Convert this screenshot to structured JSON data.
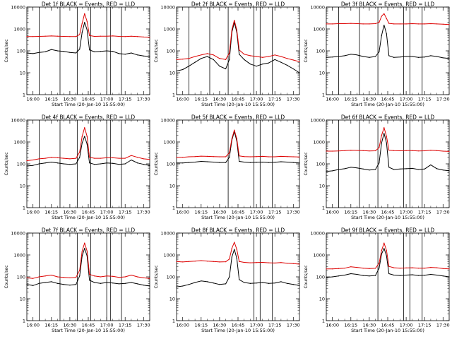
{
  "figure": {
    "background": "#ffffff",
    "series_colors": {
      "Events": "#000000",
      "LLD": "#dd0000"
    }
  },
  "chart_data": [
    {
      "type": "line",
      "title": "Det 1f BLACK = Events, RED = LLD",
      "xlabel": "Start Time (20-Jan-10 15:55:00)",
      "ylabel": "Counts/sec",
      "yscale": "log",
      "ylim": [
        1,
        10000
      ],
      "xlim": [
        "15:55",
        "17:35"
      ],
      "x_ticks": [
        "16:00",
        "16:15",
        "16:30",
        "16:45",
        "17:00",
        "17:15",
        "17:30"
      ],
      "y_ticks": [
        "1",
        "10",
        "100",
        "1000",
        "10000"
      ],
      "vertical_lines": [
        "16:05",
        "16:22",
        "16:36",
        "16:47",
        "17:00",
        "17:03",
        "17:12"
      ],
      "x_minutes": [
        0,
        5,
        10,
        15,
        20,
        25,
        30,
        35,
        40,
        43,
        45,
        47,
        49,
        51,
        55,
        60,
        65,
        70,
        75,
        80,
        85,
        90,
        95,
        100
      ],
      "series": [
        {
          "name": "Events",
          "color": "#000000",
          "values": [
            80,
            75,
            85,
            90,
            115,
            100,
            95,
            85,
            80,
            120,
            700,
            2000,
            900,
            110,
            90,
            95,
            100,
            95,
            75,
            70,
            80,
            65,
            58,
            55
          ]
        },
        {
          "name": "LLD",
          "color": "#dd0000",
          "values": [
            450,
            450,
            460,
            470,
            480,
            470,
            460,
            450,
            450,
            560,
            1800,
            5000,
            2200,
            500,
            460,
            470,
            470,
            480,
            460,
            450,
            470,
            450,
            430,
            420
          ]
        }
      ]
    },
    {
      "type": "line",
      "title": "Det 2f BLACK = Events, RED = LLD",
      "xlabel": "Start Time (20-Jan-10 15:55:00)",
      "ylabel": "Counts/sec",
      "yscale": "log",
      "ylim": [
        1,
        10000
      ],
      "xlim": [
        "15:55",
        "17:35"
      ],
      "x_ticks": [
        "16:00",
        "16:15",
        "16:30",
        "16:45",
        "17:00",
        "17:15",
        "17:30"
      ],
      "y_ticks": [
        "1",
        "10",
        "100",
        "1000",
        "10000"
      ],
      "vertical_lines": [
        "16:05",
        "16:22",
        "16:37",
        "16:58",
        "17:03",
        "17:13"
      ],
      "x_minutes": [
        0,
        5,
        10,
        15,
        20,
        25,
        30,
        35,
        40,
        43,
        45,
        47,
        49,
        51,
        55,
        60,
        65,
        70,
        75,
        80,
        85,
        90,
        95,
        100
      ],
      "series": [
        {
          "name": "Events",
          "color": "#000000",
          "values": [
            12,
            14,
            20,
            30,
            45,
            55,
            40,
            20,
            15,
            40,
            700,
            2000,
            700,
            70,
            40,
            25,
            20,
            25,
            28,
            40,
            30,
            22,
            15,
            10
          ]
        },
        {
          "name": "LLD",
          "color": "#dd0000",
          "values": [
            40,
            42,
            45,
            55,
            65,
            75,
            65,
            45,
            40,
            80,
            900,
            2500,
            900,
            110,
            70,
            60,
            55,
            50,
            55,
            65,
            55,
            45,
            38,
            32
          ]
        }
      ]
    },
    {
      "type": "line",
      "title": "Det 3f BLACK = Events, RED = LLD",
      "xlabel": "Start Time (20-Jan-10 15:55:00)",
      "ylabel": "Counts/sec",
      "yscale": "log",
      "ylim": [
        1,
        10000
      ],
      "xlim": [
        "15:55",
        "17:35"
      ],
      "x_ticks": [
        "16:00",
        "16:15",
        "16:30",
        "16:45",
        "17:00",
        "17:15",
        "17:30"
      ],
      "y_ticks": [
        "1",
        "10",
        "100",
        "1000",
        "10000"
      ],
      "vertical_lines": [
        "16:05",
        "16:22",
        "16:37",
        "16:58",
        "17:03",
        "17:13"
      ],
      "x_minutes": [
        0,
        5,
        10,
        15,
        20,
        25,
        30,
        35,
        40,
        43,
        45,
        47,
        49,
        51,
        55,
        60,
        65,
        70,
        75,
        80,
        85,
        90,
        95,
        100
      ],
      "series": [
        {
          "name": "Events",
          "color": "#000000",
          "values": [
            50,
            52,
            55,
            60,
            70,
            65,
            55,
            50,
            55,
            90,
            500,
            1500,
            600,
            60,
            50,
            52,
            55,
            55,
            50,
            52,
            60,
            55,
            48,
            45
          ]
        },
        {
          "name": "LLD",
          "color": "#dd0000",
          "values": [
            1700,
            1700,
            1750,
            1750,
            1800,
            1750,
            1700,
            1700,
            1750,
            2000,
            3800,
            5000,
            3000,
            1800,
            1700,
            1700,
            1700,
            1750,
            1700,
            1700,
            1750,
            1700,
            1650,
            1600
          ]
        }
      ]
    },
    {
      "type": "line",
      "title": "Det 4f BLACK = Events, RED = LLD",
      "xlabel": "Start Time (20-Jan-10 15:55:00)",
      "ylabel": "Counts/sec",
      "yscale": "log",
      "ylim": [
        1,
        10000
      ],
      "xlim": [
        "15:55",
        "17:35"
      ],
      "x_ticks": [
        "16:00",
        "16:15",
        "16:30",
        "16:45",
        "17:00",
        "17:15",
        "17:30"
      ],
      "y_ticks": [
        "1",
        "10",
        "100",
        "1000",
        "10000"
      ],
      "vertical_lines": [
        "16:05",
        "16:22",
        "16:36",
        "16:47",
        "17:00",
        "17:03",
        "17:12"
      ],
      "x_minutes": [
        0,
        5,
        10,
        15,
        20,
        25,
        30,
        35,
        40,
        43,
        45,
        47,
        49,
        51,
        55,
        60,
        65,
        70,
        75,
        80,
        85,
        90,
        95,
        100
      ],
      "series": [
        {
          "name": "Events",
          "color": "#000000",
          "values": [
            80,
            85,
            100,
            110,
            120,
            110,
            100,
            95,
            100,
            200,
            900,
            1800,
            800,
            110,
            95,
            100,
            110,
            105,
            95,
            100,
            150,
            110,
            95,
            85
          ]
        },
        {
          "name": "LLD",
          "color": "#dd0000",
          "values": [
            140,
            150,
            170,
            180,
            200,
            190,
            180,
            170,
            180,
            350,
            1800,
            4500,
            1800,
            200,
            180,
            180,
            190,
            190,
            180,
            180,
            240,
            200,
            170,
            160
          ]
        }
      ]
    },
    {
      "type": "line",
      "title": "Det 5f BLACK = Events, RED = LLD",
      "xlabel": "Start Time (20-Jan-10 15:55:00)",
      "ylabel": "Counts/sec",
      "yscale": "log",
      "ylim": [
        1,
        10000
      ],
      "xlim": [
        "15:55",
        "17:35"
      ],
      "x_ticks": [
        "16:00",
        "16:15",
        "16:30",
        "16:45",
        "17:00",
        "17:15",
        "17:30"
      ],
      "y_ticks": [
        "1",
        "10",
        "100",
        "1000",
        "10000"
      ],
      "vertical_lines": [
        "16:37",
        "16:58",
        "17:03",
        "17:13"
      ],
      "x_minutes": [
        0,
        5,
        10,
        15,
        20,
        25,
        30,
        35,
        40,
        43,
        45,
        47,
        49,
        51,
        55,
        60,
        65,
        70,
        75,
        80,
        85,
        90,
        95,
        100
      ],
      "series": [
        {
          "name": "Events",
          "color": "#000000",
          "values": [
            110,
            110,
            115,
            120,
            130,
            125,
            120,
            115,
            115,
            200,
            1200,
            3000,
            1100,
            130,
            120,
            115,
            118,
            120,
            115,
            118,
            125,
            120,
            115,
            110
          ]
        },
        {
          "name": "LLD",
          "color": "#dd0000",
          "values": [
            200,
            200,
            210,
            215,
            225,
            220,
            215,
            210,
            210,
            320,
            1400,
            3500,
            1400,
            230,
            215,
            210,
            215,
            220,
            210,
            210,
            220,
            215,
            210,
            205
          ]
        }
      ]
    },
    {
      "type": "line",
      "title": "Det 6f BLACK = Events, RED = LLD",
      "xlabel": "Start Time (20-Jan-10 15:55:00)",
      "ylabel": "Counts/sec",
      "yscale": "log",
      "ylim": [
        1,
        10000
      ],
      "xlim": [
        "15:55",
        "17:35"
      ],
      "x_ticks": [
        "16:00",
        "16:15",
        "16:30",
        "16:45",
        "17:00",
        "17:15",
        "17:30"
      ],
      "y_ticks": [
        "1",
        "10",
        "100",
        "1000",
        "10000"
      ],
      "vertical_lines": [
        "16:05",
        "16:22",
        "16:37",
        "16:58",
        "17:03",
        "17:13"
      ],
      "x_minutes": [
        0,
        5,
        10,
        15,
        20,
        25,
        30,
        35,
        40,
        43,
        45,
        47,
        49,
        51,
        55,
        60,
        65,
        70,
        75,
        80,
        85,
        90,
        95,
        100
      ],
      "series": [
        {
          "name": "Events",
          "color": "#000000",
          "values": [
            45,
            48,
            55,
            60,
            70,
            65,
            58,
            52,
            55,
            110,
            900,
            2500,
            900,
            70,
            55,
            58,
            60,
            62,
            55,
            58,
            90,
            60,
            52,
            48
          ]
        },
        {
          "name": "LLD",
          "color": "#dd0000",
          "values": [
            380,
            380,
            390,
            400,
            420,
            410,
            400,
            390,
            395,
            550,
            2000,
            4500,
            1800,
            420,
            400,
            395,
            400,
            400,
            390,
            395,
            420,
            400,
            380,
            370
          ]
        }
      ]
    },
    {
      "type": "line",
      "title": "Det 7f BLACK = Events, RED = LLD",
      "xlabel": "Start Time (20-Jan-10 15:55:00)",
      "ylabel": "Counts/sec",
      "yscale": "log",
      "ylim": [
        1,
        10000
      ],
      "xlim": [
        "15:55",
        "17:35"
      ],
      "x_ticks": [
        "16:00",
        "16:15",
        "16:30",
        "16:45",
        "17:00",
        "17:15",
        "17:30"
      ],
      "y_ticks": [
        "1",
        "10",
        "100",
        "1000",
        "10000"
      ],
      "vertical_lines": [
        "16:05",
        "16:22",
        "16:36",
        "16:47",
        "17:00",
        "17:03",
        "17:12"
      ],
      "x_minutes": [
        0,
        5,
        10,
        15,
        20,
        25,
        30,
        35,
        40,
        43,
        45,
        47,
        49,
        51,
        55,
        60,
        65,
        70,
        75,
        80,
        85,
        90,
        95,
        100
      ],
      "series": [
        {
          "name": "Events",
          "color": "#000000",
          "values": [
            45,
            40,
            50,
            55,
            60,
            50,
            45,
            42,
            45,
            110,
            900,
            2000,
            900,
            70,
            55,
            50,
            55,
            52,
            48,
            50,
            55,
            48,
            42,
            38
          ]
        },
        {
          "name": "LLD",
          "color": "#dd0000",
          "values": [
            90,
            85,
            100,
            110,
            120,
            100,
            95,
            90,
            95,
            200,
            1500,
            3500,
            1500,
            130,
            110,
            100,
            110,
            105,
            95,
            100,
            120,
            100,
            90,
            85
          ]
        }
      ]
    },
    {
      "type": "line",
      "title": "Det 8f BLACK = Events, RED = LLD",
      "xlabel": "Start Time (20-Jan-10 15:55:00)",
      "ylabel": "Counts/sec",
      "yscale": "log",
      "ylim": [
        1,
        10000
      ],
      "xlim": [
        "15:55",
        "17:35"
      ],
      "x_ticks": [
        "16:00",
        "16:15",
        "16:30",
        "16:45",
        "17:00",
        "17:15",
        "17:30"
      ],
      "y_ticks": [
        "1",
        "10",
        "100",
        "1000",
        "10000"
      ],
      "vertical_lines": [
        "16:58",
        "17:03",
        "17:13"
      ],
      "x_minutes": [
        0,
        5,
        10,
        15,
        20,
        25,
        30,
        35,
        40,
        43,
        45,
        47,
        49,
        51,
        55,
        60,
        65,
        70,
        75,
        80,
        85,
        90,
        95,
        100
      ],
      "series": [
        {
          "name": "Events",
          "color": "#000000",
          "values": [
            35,
            38,
            45,
            55,
            65,
            60,
            52,
            45,
            48,
            100,
            800,
            1800,
            700,
            75,
            55,
            50,
            52,
            55,
            50,
            52,
            60,
            50,
            45,
            40
          ]
        },
        {
          "name": "LLD",
          "color": "#dd0000",
          "values": [
            500,
            480,
            500,
            520,
            550,
            520,
            500,
            480,
            490,
            650,
            2000,
            3800,
            1800,
            500,
            460,
            440,
            450,
            460,
            440,
            430,
            450,
            420,
            400,
            380
          ]
        }
      ]
    },
    {
      "type": "line",
      "title": "Det 9f BLACK = Events, RED = LLD",
      "xlabel": "Start Time (20-Jan-10 15:55:00)",
      "ylabel": "Counts/sec",
      "yscale": "log",
      "ylim": [
        1,
        10000
      ],
      "xlim": [
        "15:55",
        "17:35"
      ],
      "x_ticks": [
        "16:00",
        "16:15",
        "16:30",
        "16:45",
        "17:00",
        "17:15",
        "17:30"
      ],
      "y_ticks": [
        "1",
        "10",
        "100",
        "1000",
        "10000"
      ],
      "vertical_lines": [
        "16:37",
        "16:58",
        "17:03",
        "17:13"
      ],
      "x_minutes": [
        0,
        5,
        10,
        15,
        20,
        25,
        30,
        35,
        40,
        43,
        45,
        47,
        49,
        51,
        55,
        60,
        65,
        70,
        75,
        80,
        85,
        90,
        95,
        100
      ],
      "series": [
        {
          "name": "Events",
          "color": "#000000",
          "values": [
            95,
            100,
            110,
            120,
            140,
            130,
            115,
            110,
            115,
            250,
            1100,
            2000,
            900,
            140,
            120,
            115,
            120,
            125,
            115,
            118,
            130,
            120,
            110,
            100
          ]
        },
        {
          "name": "LLD",
          "color": "#dd0000",
          "values": [
            230,
            230,
            240,
            250,
            290,
            270,
            250,
            240,
            245,
            420,
            1600,
            3500,
            1600,
            300,
            260,
            250,
            255,
            260,
            250,
            250,
            270,
            260,
            240,
            230
          ]
        }
      ]
    }
  ]
}
